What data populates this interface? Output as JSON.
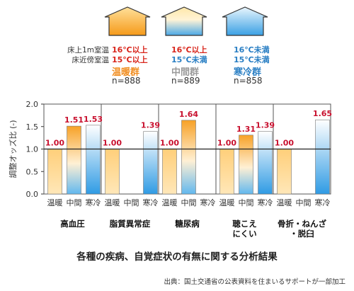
{
  "legend": {
    "row_labels": [
      "床上1m室温",
      "床近傍室温"
    ],
    "groups": [
      {
        "name": "温暖群",
        "n": "n=888",
        "cond1": "16℃以上",
        "cond2": "15℃以上",
        "cond1_color": "#d9261c",
        "cond2_color": "#d9261c",
        "name_color": "#f08c1e",
        "roof_top": "#ffe09a",
        "roof_bottom": "#f59a1a"
      },
      {
        "name": "中間群",
        "n": "n=889",
        "cond1": "16℃以上",
        "cond2": "15℃未満",
        "cond1_color": "#d9261c",
        "cond2_color": "#2a7fc4",
        "name_color": "#9a9a9a",
        "roof_top": "#ffe09a",
        "roof_bottom": "#4aa8e6"
      },
      {
        "name": "寒冷群",
        "n": "n=858",
        "cond1": "16℃未満",
        "cond2": "15℃未満",
        "cond1_color": "#2a7fc4",
        "cond2_color": "#2a7fc4",
        "name_color": "#2a7fc4",
        "roof_top": "#e6f4fc",
        "roof_bottom": "#3aa0e4"
      }
    ]
  },
  "chart_data": {
    "type": "bar",
    "ylabel": "調整オッズ比 (-)",
    "ylim": [
      0,
      2.0
    ],
    "yticks": [
      "0.0",
      "0.5",
      "1.0",
      "1.5",
      "2.0"
    ],
    "bar_labels": [
      "温暖",
      "中間",
      "寒冷"
    ],
    "categories": [
      {
        "name": "高血圧",
        "values": [
          1.0,
          1.51,
          1.53
        ],
        "labels": [
          "1.00",
          "1.51",
          "1.53"
        ]
      },
      {
        "name": "脂質異常症",
        "values": [
          1.0,
          null,
          1.39
        ],
        "labels": [
          "1.00",
          "",
          "1.39"
        ]
      },
      {
        "name": "糖尿病",
        "values": [
          1.0,
          1.64,
          null
        ],
        "labels": [
          "1.00",
          "1.64",
          ""
        ]
      },
      {
        "name": "聴こえ\nにくい",
        "values": [
          1.0,
          1.31,
          1.39
        ],
        "labels": [
          "1.00",
          "1.31",
          "1.39"
        ]
      },
      {
        "name": "骨折・ねんざ\n・脱臼",
        "values": [
          1.0,
          null,
          1.65
        ],
        "labels": [
          "1.00",
          "",
          "1.65"
        ]
      }
    ],
    "reference_line": 1.0,
    "value_label_color": "#c8102e"
  },
  "title": "各種の疾病、自覚症状の有無に関する分析結果",
  "source": "出典：国土交通省の公表資料を住まいるサポートが一部加工"
}
